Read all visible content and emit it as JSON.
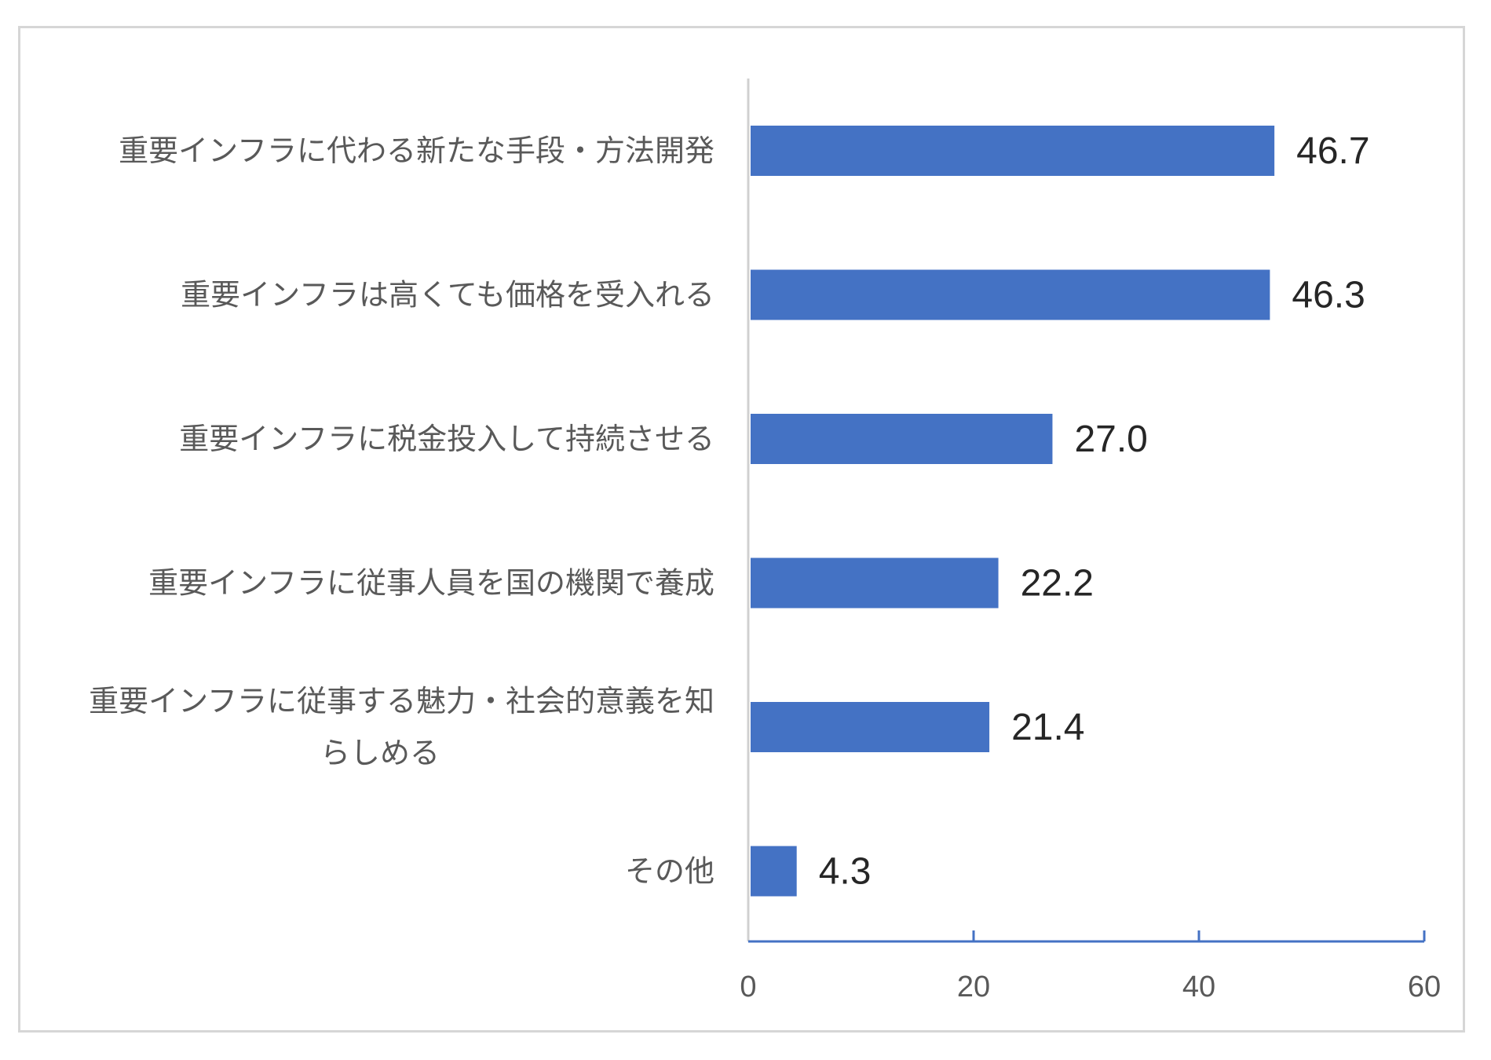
{
  "chart_data": {
    "type": "bar",
    "orientation": "horizontal",
    "categories": [
      "重要インフラに代わる新たな手段・方法開発",
      "重要インフラは高くても価格を受入れる",
      "重要インフラに税金投入して持続させる",
      "重要インフラに従事人員を国の機関で養成",
      "重要インフラに従事する魅力・社会的意義を知らしめる",
      "その他"
    ],
    "category_lines": [
      [
        "重要インフラに代わる新たな手段・方法開発"
      ],
      [
        "重要インフラは高くても価格を受入れる"
      ],
      [
        "重要インフラに税金投入して持続させる"
      ],
      [
        "重要インフラに従事人員を国の機関で養成"
      ],
      [
        "重要インフラに従事する魅力・社会的意義を知",
        "らしめる"
      ],
      [
        "その他"
      ]
    ],
    "values": [
      46.7,
      46.3,
      27.0,
      22.2,
      21.4,
      4.3
    ],
    "value_labels": [
      "46.7",
      "46.3",
      "27.0",
      "22.2",
      "21.4",
      "4.3"
    ],
    "xlim": [
      0,
      60
    ],
    "xticks": [
      0,
      20,
      40,
      60
    ],
    "xtick_labels": [
      "0",
      "20",
      "40",
      "60"
    ],
    "title": "",
    "xlabel": "",
    "ylabel": "",
    "grid": false,
    "legend": "none",
    "colors": {
      "bar": "#4472C4",
      "value_axis": "#4472C4",
      "category_axis": "#d0d0d0"
    }
  }
}
